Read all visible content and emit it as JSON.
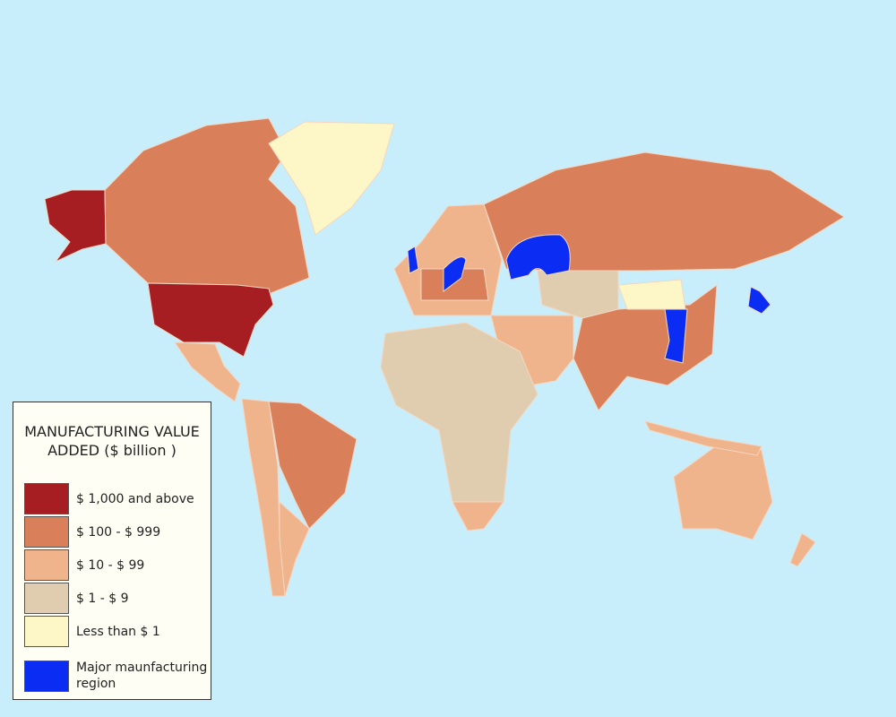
{
  "legend": {
    "title": "MANUFACTURING VALUE ADDED ($ billion )",
    "items": [
      {
        "label": "$ 1,000 and above",
        "color": "#a61e22"
      },
      {
        "label": "$ 100 - $ 999",
        "color": "#d9805a"
      },
      {
        "label": "$ 10 - $ 99",
        "color": "#f0b48c"
      },
      {
        "label": "$ 1 - $ 9",
        "color": "#e0cdb0"
      },
      {
        "label": "Less than $ 1",
        "color": "#fdf6c6"
      },
      {
        "label": "Major maunfacturing region",
        "color": "#0b2cf3"
      }
    ]
  }
}
